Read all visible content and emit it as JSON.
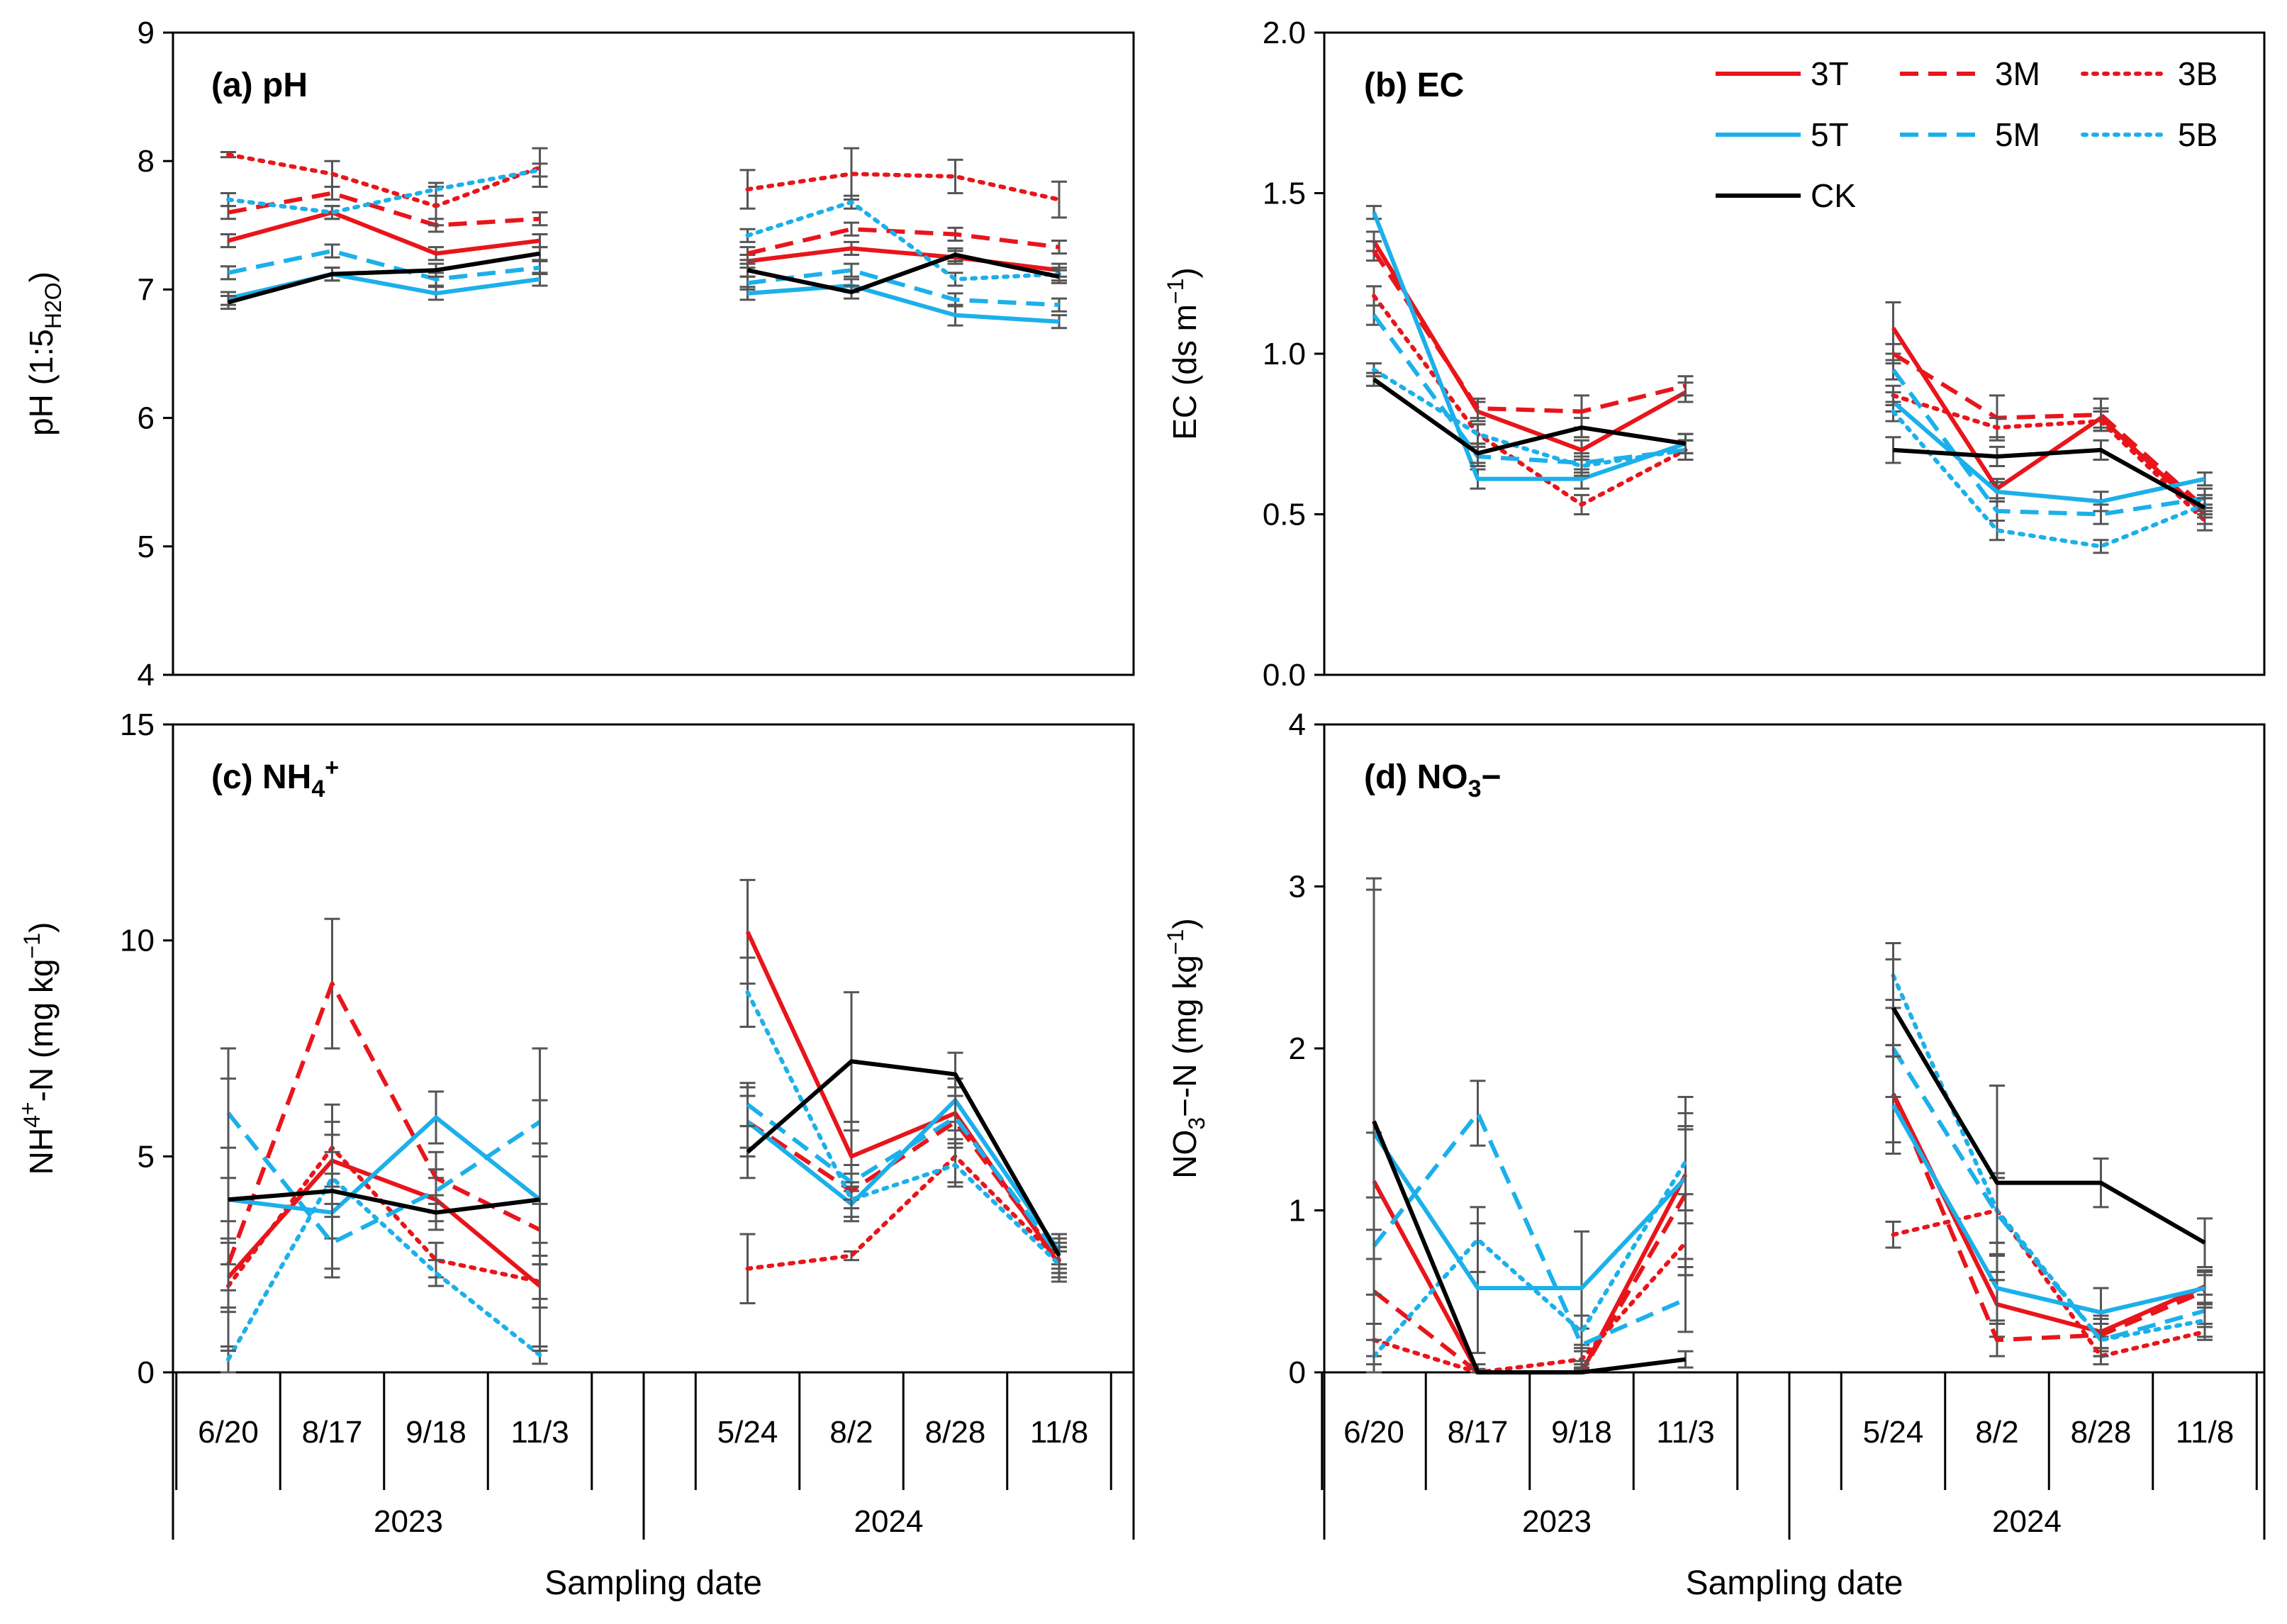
{
  "styles": {
    "3T": {
      "color": "#E8151B",
      "dash": "solid"
    },
    "3M": {
      "color": "#E8151B",
      "dash": "dash"
    },
    "3B": {
      "color": "#E8151B",
      "dash": "dot"
    },
    "5T": {
      "color": "#1CB0EA",
      "dash": "solid"
    },
    "5M": {
      "color": "#1CB0EA",
      "dash": "dash"
    },
    "5B": {
      "color": "#1CB0EA",
      "dash": "dot"
    },
    "CK": {
      "color": "#000000",
      "dash": "solid"
    }
  },
  "legend": [
    "3T",
    "3M",
    "3B",
    "5T",
    "5M",
    "5B",
    "CK"
  ],
  "xaxis": {
    "dates_2023": [
      "6/20",
      "8/17",
      "9/18",
      "11/3"
    ],
    "dates_2024": [
      "5/24",
      "8/2",
      "8/28",
      "11/8"
    ],
    "years": [
      "2023",
      "2024"
    ],
    "label": "Sampling date"
  },
  "chart_data": [
    {
      "id": "a",
      "type": "line",
      "title": "(a) pH",
      "ylabel": "pH (1:5H2O)",
      "ylim": [
        4,
        9
      ],
      "yticks": [
        "4",
        "5",
        "6",
        "7",
        "8",
        "9"
      ],
      "categories": [
        "6/20",
        "8/17",
        "9/18",
        "11/3",
        "5/24",
        "8/2",
        "8/28",
        "11/8"
      ],
      "series": [
        {
          "name": "3T",
          "values": [
            7.38,
            7.6,
            7.28,
            7.38,
            7.22,
            7.32,
            7.25,
            7.15
          ],
          "err": [
            0.05,
            0.05,
            0.05,
            0.05,
            0.05,
            0.05,
            0.05,
            0.05
          ]
        },
        {
          "name": "3M",
          "values": [
            7.6,
            7.75,
            7.5,
            7.55,
            7.28,
            7.47,
            7.43,
            7.33
          ],
          "err": [
            0.05,
            0.05,
            0.05,
            0.05,
            0.05,
            0.05,
            0.05,
            0.05
          ]
        },
        {
          "name": "3B",
          "values": [
            8.05,
            7.9,
            7.65,
            7.95,
            7.78,
            7.9,
            7.88,
            7.7
          ],
          "err": [
            0.02,
            0.1,
            0.15,
            0.15,
            0.15,
            0.2,
            0.13,
            0.14
          ]
        },
        {
          "name": "5T",
          "values": [
            6.93,
            7.12,
            6.97,
            7.08,
            6.97,
            7.03,
            6.8,
            6.75
          ],
          "err": [
            0.05,
            0.05,
            0.05,
            0.05,
            0.05,
            0.05,
            0.08,
            0.05
          ]
        },
        {
          "name": "5M",
          "values": [
            7.13,
            7.3,
            7.08,
            7.17,
            7.05,
            7.15,
            6.92,
            6.88
          ],
          "err": [
            0.05,
            0.05,
            0.05,
            0.05,
            0.05,
            0.05,
            0.05,
            0.05
          ]
        },
        {
          "name": "5B",
          "values": [
            7.7,
            7.6,
            7.78,
            7.93,
            7.42,
            7.68,
            7.08,
            7.12
          ],
          "err": [
            0.05,
            0.05,
            0.05,
            0.05,
            0.05,
            0.05,
            0.05,
            0.05
          ]
        },
        {
          "name": "CK",
          "values": [
            6.9,
            7.12,
            7.15,
            7.28,
            7.15,
            6.98,
            7.27,
            7.1
          ],
          "err": [
            0.05,
            0.05,
            0.05,
            0.05,
            0.05,
            0.05,
            0.05,
            0.05
          ]
        }
      ]
    },
    {
      "id": "b",
      "type": "line",
      "title": "(b) EC",
      "ylabel": "EC (ds m−1)",
      "ylim": [
        0,
        2
      ],
      "yticks": [
        "0.0",
        "0.5",
        "1.0",
        "1.5",
        "2.0"
      ],
      "categories": [
        "6/20",
        "8/17",
        "9/18",
        "11/3",
        "5/24",
        "8/2",
        "8/28",
        "11/8"
      ],
      "series": [
        {
          "name": "3T",
          "values": [
            1.35,
            0.82,
            0.7,
            0.88,
            1.08,
            0.58,
            0.8,
            0.5
          ],
          "err": [
            0.03,
            0.03,
            0.03,
            0.03,
            0.08,
            0.03,
            0.03,
            0.03
          ]
        },
        {
          "name": "3M",
          "values": [
            1.32,
            0.83,
            0.82,
            0.9,
            1.0,
            0.8,
            0.81,
            0.52
          ],
          "err": [
            0.03,
            0.03,
            0.05,
            0.03,
            0.03,
            0.07,
            0.05,
            0.03
          ]
        },
        {
          "name": "3B",
          "values": [
            1.18,
            0.75,
            0.53,
            0.7,
            0.87,
            0.77,
            0.79,
            0.48
          ],
          "err": [
            0.03,
            0.03,
            0.03,
            0.03,
            0.03,
            0.03,
            0.03,
            0.03
          ]
        },
        {
          "name": "5T",
          "values": [
            1.44,
            0.61,
            0.61,
            0.72,
            0.85,
            0.57,
            0.54,
            0.61
          ],
          "err": [
            0.02,
            0.03,
            0.03,
            0.03,
            0.03,
            0.03,
            0.03,
            0.02
          ]
        },
        {
          "name": "5M",
          "values": [
            1.12,
            0.68,
            0.66,
            0.7,
            0.95,
            0.51,
            0.5,
            0.55
          ],
          "err": [
            0.03,
            0.03,
            0.03,
            0.03,
            0.03,
            0.03,
            0.03,
            0.03
          ]
        },
        {
          "name": "5B",
          "values": [
            0.95,
            0.75,
            0.65,
            0.7,
            0.82,
            0.45,
            0.4,
            0.53
          ],
          "err": [
            0.02,
            0.03,
            0.03,
            0.03,
            0.03,
            0.03,
            0.02,
            0.03
          ]
        },
        {
          "name": "CK",
          "values": [
            0.92,
            0.69,
            0.77,
            0.72,
            0.7,
            0.68,
            0.7,
            0.52
          ],
          "err": [
            0.02,
            0.03,
            0.03,
            0.03,
            0.04,
            0.03,
            0.03,
            0.03
          ]
        }
      ]
    },
    {
      "id": "c",
      "type": "line",
      "title": "(c) NH4+",
      "ylabel": "NH4+-N (mg kg−1)",
      "ylim": [
        0,
        15
      ],
      "yticks": [
        "0",
        "5",
        "10",
        "15"
      ],
      "categories": [
        "6/20",
        "8/17",
        "9/18",
        "11/3",
        "5/24",
        "8/2",
        "8/28",
        "11/8"
      ],
      "series": [
        {
          "name": "3T",
          "values": [
            2.2,
            4.9,
            4.0,
            2.0,
            10.2,
            5.0,
            6.0,
            2.5
          ],
          "err": [
            0.8,
            0.6,
            0.5,
            0.5,
            1.2,
            0.8,
            0.6,
            0.4
          ]
        },
        {
          "name": "3M",
          "values": [
            2.5,
            9.0,
            4.5,
            3.3,
            5.8,
            4.2,
            5.8,
            2.6
          ],
          "err": [
            0.6,
            1.5,
            0.6,
            0.6,
            0.6,
            0.4,
            0.6,
            0.3
          ]
        },
        {
          "name": "3B",
          "values": [
            2.0,
            5.2,
            2.6,
            2.1,
            2.4,
            2.7,
            5.0,
            2.6
          ],
          "err": [
            0.5,
            0.6,
            0.4,
            0.4,
            0.8,
            0.1,
            0.6,
            0.3
          ]
        },
        {
          "name": "5T",
          "values": [
            4.0,
            3.7,
            5.9,
            4.0,
            5.8,
            3.9,
            6.3,
            2.8
          ],
          "err": [
            0.5,
            0.6,
            0.6,
            1.0,
            0.8,
            0.4,
            0.5,
            0.3
          ]
        },
        {
          "name": "5M",
          "values": [
            6.0,
            3.0,
            4.2,
            5.8,
            6.2,
            4.4,
            5.9,
            2.7
          ],
          "err": [
            0.8,
            0.6,
            0.5,
            0.5,
            0.5,
            0.4,
            0.5,
            0.3
          ]
        },
        {
          "name": "5B",
          "values": [
            0.3,
            4.5,
            2.3,
            0.4,
            8.8,
            4.0,
            4.8,
            2.5
          ],
          "err": [
            0.3,
            0.6,
            0.3,
            0.2,
            0.8,
            0.4,
            0.5,
            0.3
          ]
        },
        {
          "name": "CK",
          "values": [
            4.0,
            4.2,
            3.7,
            4.0,
            5.1,
            7.2,
            6.9,
            2.7
          ],
          "err": [
            3.5,
            2.0,
            0.4,
            3.5,
            0.6,
            1.6,
            0.5,
            0.5
          ]
        }
      ]
    },
    {
      "id": "d",
      "type": "line",
      "title": "(d) NO3−",
      "ylabel": "NO3−-N (mg kg−1)",
      "ylim": [
        0,
        4
      ],
      "yticks": [
        "0",
        "1",
        "2",
        "3",
        "4"
      ],
      "categories": [
        "6/20",
        "8/17",
        "9/18",
        "11/3",
        "5/24",
        "8/2",
        "8/28",
        "11/8"
      ],
      "series": [
        {
          "name": "3T",
          "values": [
            1.18,
            0.0,
            0.0,
            1.22,
            1.72,
            0.42,
            0.25,
            0.53
          ],
          "err": [
            0.3,
            0.02,
            0.02,
            0.3,
            0.3,
            0.2,
            0.1,
            0.1
          ]
        },
        {
          "name": "3M",
          "values": [
            0.5,
            0.0,
            0.0,
            1.1,
            1.72,
            0.2,
            0.23,
            0.5
          ],
          "err": [
            0.2,
            0.02,
            0.02,
            0.5,
            0.3,
            0.1,
            0.1,
            0.1
          ]
        },
        {
          "name": "3B",
          "values": [
            0.2,
            0.0,
            0.08,
            0.8,
            0.85,
            1.0,
            0.1,
            0.25
          ],
          "err": [
            0.1,
            0.02,
            0.05,
            0.2,
            0.08,
            0.2,
            0.05,
            0.05
          ]
        },
        {
          "name": "5T",
          "values": [
            1.48,
            0.52,
            0.52,
            1.2,
            1.65,
            0.52,
            0.37,
            0.52
          ],
          "err": [
            1.5,
            0.4,
            0.35,
            0.5,
            0.3,
            0.2,
            0.15,
            0.1
          ]
        },
        {
          "name": "5M",
          "values": [
            0.78,
            1.6,
            0.17,
            0.45,
            2.0,
            0.98,
            0.2,
            0.38
          ],
          "err": [
            0.3,
            0.2,
            0.1,
            0.2,
            0.3,
            0.25,
            0.1,
            0.1
          ]
        },
        {
          "name": "5B",
          "values": [
            0.1,
            0.82,
            0.25,
            1.3,
            2.45,
            1.0,
            0.2,
            0.32
          ],
          "err": [
            0.1,
            0.2,
            0.1,
            0.2,
            0.2,
            0.2,
            0.1,
            0.1
          ]
        },
        {
          "name": "CK",
          "values": [
            1.55,
            0.0,
            0.0,
            0.08,
            2.25,
            1.17,
            1.17,
            0.8
          ],
          "err": [
            1.5,
            0.05,
            0.05,
            0.05,
            0.3,
            0.6,
            0.15,
            0.15
          ]
        }
      ]
    }
  ]
}
